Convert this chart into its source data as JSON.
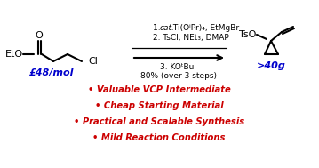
{
  "bg_color": "#ffffff",
  "yield_text": "80% (over 3 steps)",
  "price_text": "£48/mol",
  "scale_text": ">40g",
  "bullet_points": [
    "• Valuable VCP Intermediate",
    "• Cheap Starting Material",
    "• Practical and Scalable Synthesis",
    "• Mild Reaction Conditions"
  ],
  "bullet_color": "#cc0000",
  "price_color": "#0000cc",
  "scale_color": "#0000cc",
  "line_color": "#000000",
  "text_color": "#000000",
  "step2_text": "2. TsCl, NEt",
  "step2_sub": "3",
  "step2_rest": ", DMAP",
  "step3_text": "3. KO",
  "step3_sup": "t",
  "step3_rest": "Bu"
}
